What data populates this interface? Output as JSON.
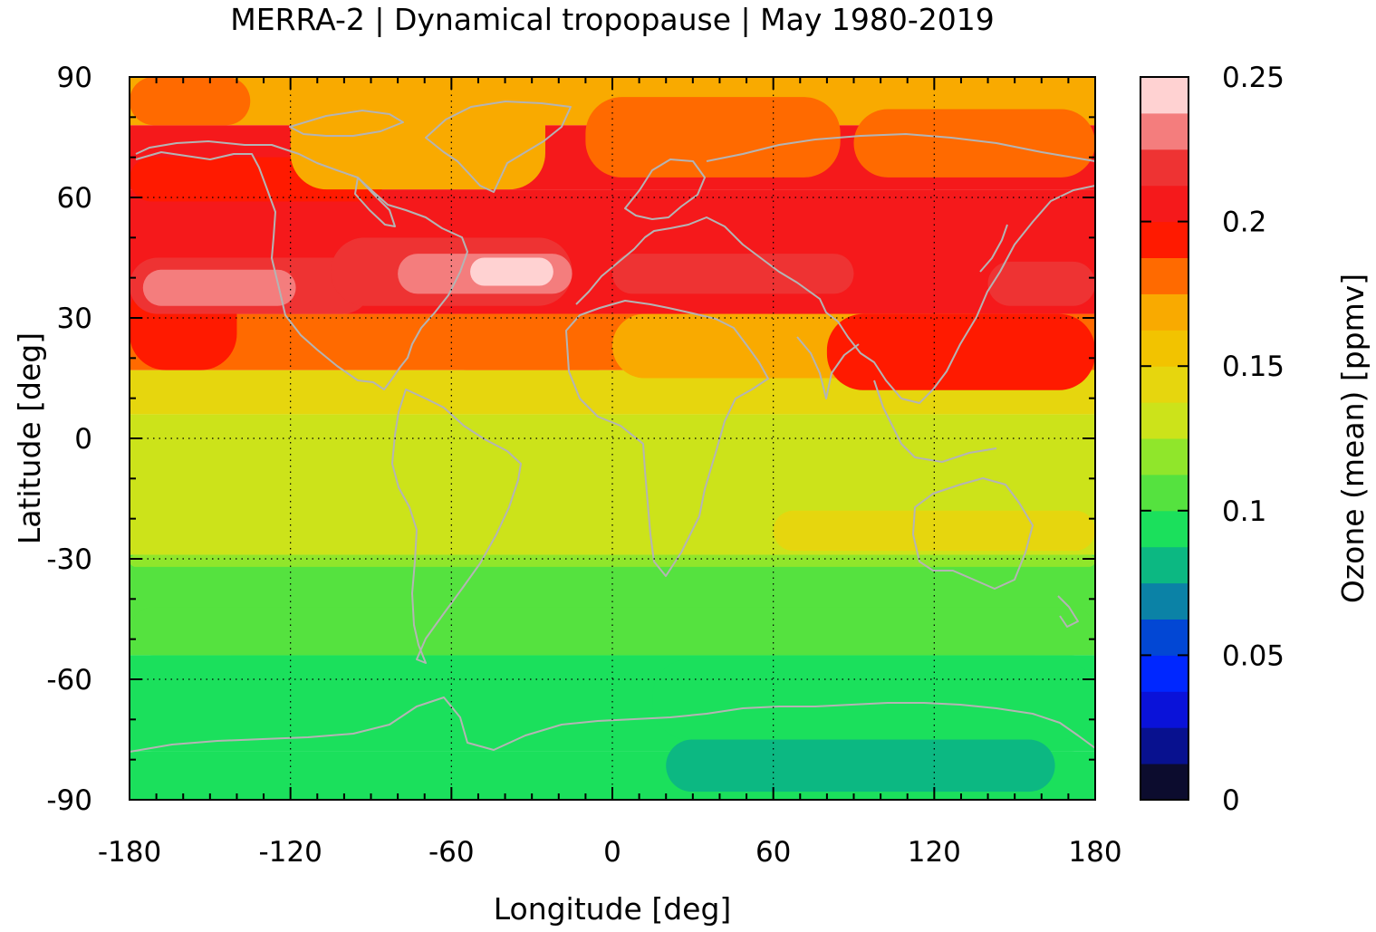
{
  "chart_data": {
    "type": "heatmap",
    "title": "MERRA-2 | Dynamical tropopause | May 1980-2019",
    "xlabel": "Longitude [deg]",
    "ylabel": "Latitude [deg]",
    "colorbar_label": "Ozone (mean) [ppmv]",
    "xlim": [
      -180,
      180
    ],
    "ylim": [
      -90,
      90
    ],
    "x_ticks": [
      -180,
      -120,
      -60,
      0,
      60,
      120,
      180
    ],
    "x_tick_labels": [
      "-180",
      "-120",
      "-60",
      "0",
      "60",
      "120",
      "180"
    ],
    "y_ticks": [
      90,
      60,
      30,
      0,
      -30,
      -60,
      -90
    ],
    "y_tick_labels": [
      "90",
      "60",
      "30",
      "0",
      "-30",
      "-60",
      "-90"
    ],
    "grid": true,
    "colorbar": {
      "range": [
        0,
        0.25
      ],
      "ticks": [
        0.25,
        0.2,
        0.15,
        0.1,
        0.05,
        0
      ],
      "tick_labels": [
        "0.25",
        "0.2",
        "0.15",
        "0.1",
        "0.05",
        "0"
      ],
      "levels": [
        {
          "min": 0.0,
          "max": 0.0125,
          "color": "#0c0c2e"
        },
        {
          "min": 0.0125,
          "max": 0.025,
          "color": "#08118f"
        },
        {
          "min": 0.025,
          "max": 0.0375,
          "color": "#0a12d9"
        },
        {
          "min": 0.0375,
          "max": 0.05,
          "color": "#0027ff"
        },
        {
          "min": 0.05,
          "max": 0.0625,
          "color": "#0247d4"
        },
        {
          "min": 0.0625,
          "max": 0.075,
          "color": "#0b82a6"
        },
        {
          "min": 0.075,
          "max": 0.0875,
          "color": "#0cb882"
        },
        {
          "min": 0.0875,
          "max": 0.1,
          "color": "#1be05c"
        },
        {
          "min": 0.1,
          "max": 0.1125,
          "color": "#55e23f"
        },
        {
          "min": 0.1125,
          "max": 0.125,
          "color": "#90e62b"
        },
        {
          "min": 0.125,
          "max": 0.1375,
          "color": "#cce31a"
        },
        {
          "min": 0.1375,
          "max": 0.15,
          "color": "#e6d60e"
        },
        {
          "min": 0.15,
          "max": 0.1625,
          "color": "#f2c300"
        },
        {
          "min": 0.1625,
          "max": 0.175,
          "color": "#f9aa00"
        },
        {
          "min": 0.175,
          "max": 0.1875,
          "color": "#ff6a00"
        },
        {
          "min": 0.1875,
          "max": 0.2,
          "color": "#ff1a00"
        },
        {
          "min": 0.2,
          "max": 0.2125,
          "color": "#f5191b"
        },
        {
          "min": 0.2125,
          "max": 0.225,
          "color": "#ee3333"
        },
        {
          "min": 0.225,
          "max": 0.2375,
          "color": "#f47d7d"
        },
        {
          "min": 0.2375,
          "max": 0.25,
          "color": "#ffd2d2"
        }
      ]
    },
    "zonal_bands": [
      {
        "lat_min": -90,
        "lat_max": -78,
        "value": 0.095
      },
      {
        "lat_min": -78,
        "lat_max": -54,
        "value": 0.095
      },
      {
        "lat_min": -54,
        "lat_max": -29,
        "value": 0.107
      },
      {
        "lat_min": -29,
        "lat_max": 6,
        "value": 0.13
      },
      {
        "lat_min": 6,
        "lat_max": 17,
        "value": 0.145
      },
      {
        "lat_min": 17,
        "lat_max": 31,
        "value": 0.18
      },
      {
        "lat_min": 31,
        "lat_max": 62,
        "value": 0.21
      },
      {
        "lat_min": 62,
        "lat_max": 78,
        "value": 0.2
      },
      {
        "lat_min": 78,
        "lat_max": 90,
        "value": 0.17
      }
    ],
    "anomalies": [
      {
        "lon_min": -180,
        "lon_max": -140,
        "lat_min": 17,
        "lat_max": 40,
        "value": 0.195
      },
      {
        "lon_min": -180,
        "lon_max": -85,
        "lat_min": 59,
        "lat_max": 70,
        "value": 0.195
      },
      {
        "lon_min": -180,
        "lon_max": -90,
        "lat_min": 31,
        "lat_max": 45,
        "value": 0.22
      },
      {
        "lon_min": -175,
        "lon_max": -118,
        "lat_min": 33,
        "lat_max": 42,
        "value": 0.23
      },
      {
        "lon_min": -105,
        "lon_max": -15,
        "lat_min": 33,
        "lat_max": 50,
        "value": 0.22
      },
      {
        "lon_min": -80,
        "lon_max": -15,
        "lat_min": 36,
        "lat_max": 46,
        "value": 0.23
      },
      {
        "lon_min": -53,
        "lon_max": -22,
        "lat_min": 38,
        "lat_max": 45,
        "value": 0.245
      },
      {
        "lon_min": -65,
        "lon_max": 5,
        "lat_min": 17,
        "lat_max": 31,
        "value": 0.18
      },
      {
        "lon_min": 0,
        "lon_max": 150,
        "lat_min": 15,
        "lat_max": 31,
        "value": 0.17
      },
      {
        "lon_min": 80,
        "lon_max": 180,
        "lat_min": 12,
        "lat_max": 31,
        "value": 0.195
      },
      {
        "lon_min": 0,
        "lon_max": 90,
        "lat_min": 36,
        "lat_max": 46,
        "value": 0.22
      },
      {
        "lon_min": 140,
        "lon_max": 180,
        "lat_min": 33,
        "lat_max": 44,
        "value": 0.22
      },
      {
        "lon_min": -180,
        "lon_max": -135,
        "lat_min": 78,
        "lat_max": 90,
        "value": 0.185
      },
      {
        "lon_min": -120,
        "lon_max": -25,
        "lat_min": 62,
        "lat_max": 90,
        "value": 0.17
      },
      {
        "lon_min": -120,
        "lon_max": -45,
        "lat_min": 75,
        "lat_max": 90,
        "value": 0.165
      },
      {
        "lon_min": -10,
        "lon_max": 85,
        "lat_min": 65,
        "lat_max": 85,
        "value": 0.185
      },
      {
        "lon_min": 90,
        "lon_max": 180,
        "lat_min": 65,
        "lat_max": 82,
        "value": 0.185
      },
      {
        "lon_min": -180,
        "lon_max": 180,
        "lat_min": -29,
        "lat_max": -22,
        "value": 0.127
      },
      {
        "lon_min": -180,
        "lon_max": 180,
        "lat_min": -32,
        "lat_max": -29,
        "value": 0.12
      },
      {
        "lon_min": -180,
        "lon_max": 180,
        "lat_min": -54,
        "lat_max": -42,
        "value": 0.1
      },
      {
        "lon_min": 60,
        "lon_max": 180,
        "lat_min": -28,
        "lat_max": -18,
        "value": 0.14
      },
      {
        "lon_min": 15,
        "lon_max": 180,
        "lat_min": -75,
        "lat_max": -55,
        "value": 0.095
      },
      {
        "lon_min": -180,
        "lon_max": 180,
        "lat_min": -90,
        "lat_max": -78,
        "value": 0.095
      },
      {
        "lon_min": 20,
        "lon_max": 165,
        "lat_min": -88,
        "lat_max": -75,
        "value": 0.08
      }
    ]
  }
}
